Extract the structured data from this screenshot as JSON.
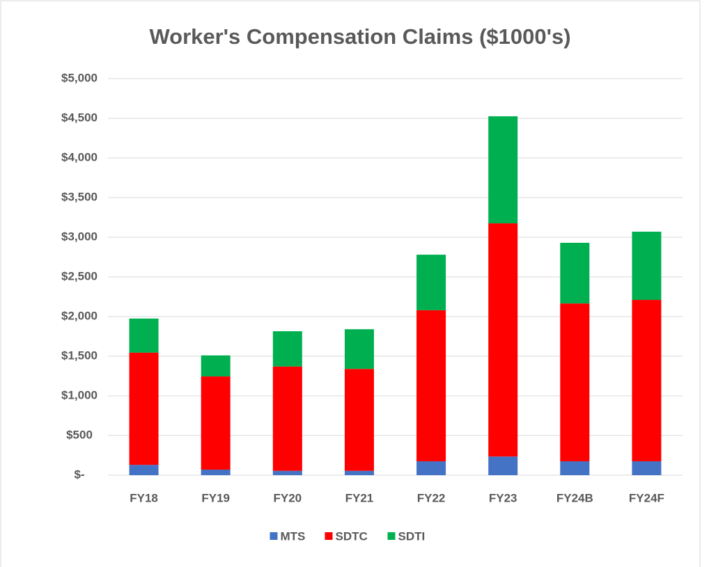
{
  "chart_data": {
    "type": "stacked_bar",
    "title": "Worker's Compensation Claims ($1000's)",
    "categories": [
      "FY18",
      "FY19",
      "FY20",
      "FY21",
      "FY22",
      "FY23",
      "FY24B",
      "FY24F"
    ],
    "series": [
      {
        "name": "MTS",
        "color": "#4472c4",
        "values": [
          130,
          70,
          55,
          55,
          175,
          235,
          175,
          175
        ]
      },
      {
        "name": "SDTC",
        "color": "#ff0000",
        "values": [
          1415,
          1175,
          1315,
          1285,
          1905,
          2940,
          1990,
          2035
        ]
      },
      {
        "name": "SDTI",
        "color": "#00b050",
        "values": [
          430,
          265,
          445,
          500,
          700,
          1350,
          765,
          860
        ]
      }
    ],
    "ylim": [
      0,
      5000
    ],
    "yticks": [
      {
        "value": 0,
        "label": "$-"
      },
      {
        "value": 500,
        "label": "$500"
      },
      {
        "value": 1000,
        "label": "$1,000"
      },
      {
        "value": 1500,
        "label": "$1,500"
      },
      {
        "value": 2000,
        "label": "$2,000"
      },
      {
        "value": 2500,
        "label": "$2,500"
      },
      {
        "value": 3000,
        "label": "$3,000"
      },
      {
        "value": 3500,
        "label": "$3,500"
      },
      {
        "value": 4000,
        "label": "$4,000"
      },
      {
        "value": 4500,
        "label": "$4,500"
      },
      {
        "value": 5000,
        "label": "$5,000"
      }
    ],
    "grid": true,
    "legend": "bottom"
  }
}
